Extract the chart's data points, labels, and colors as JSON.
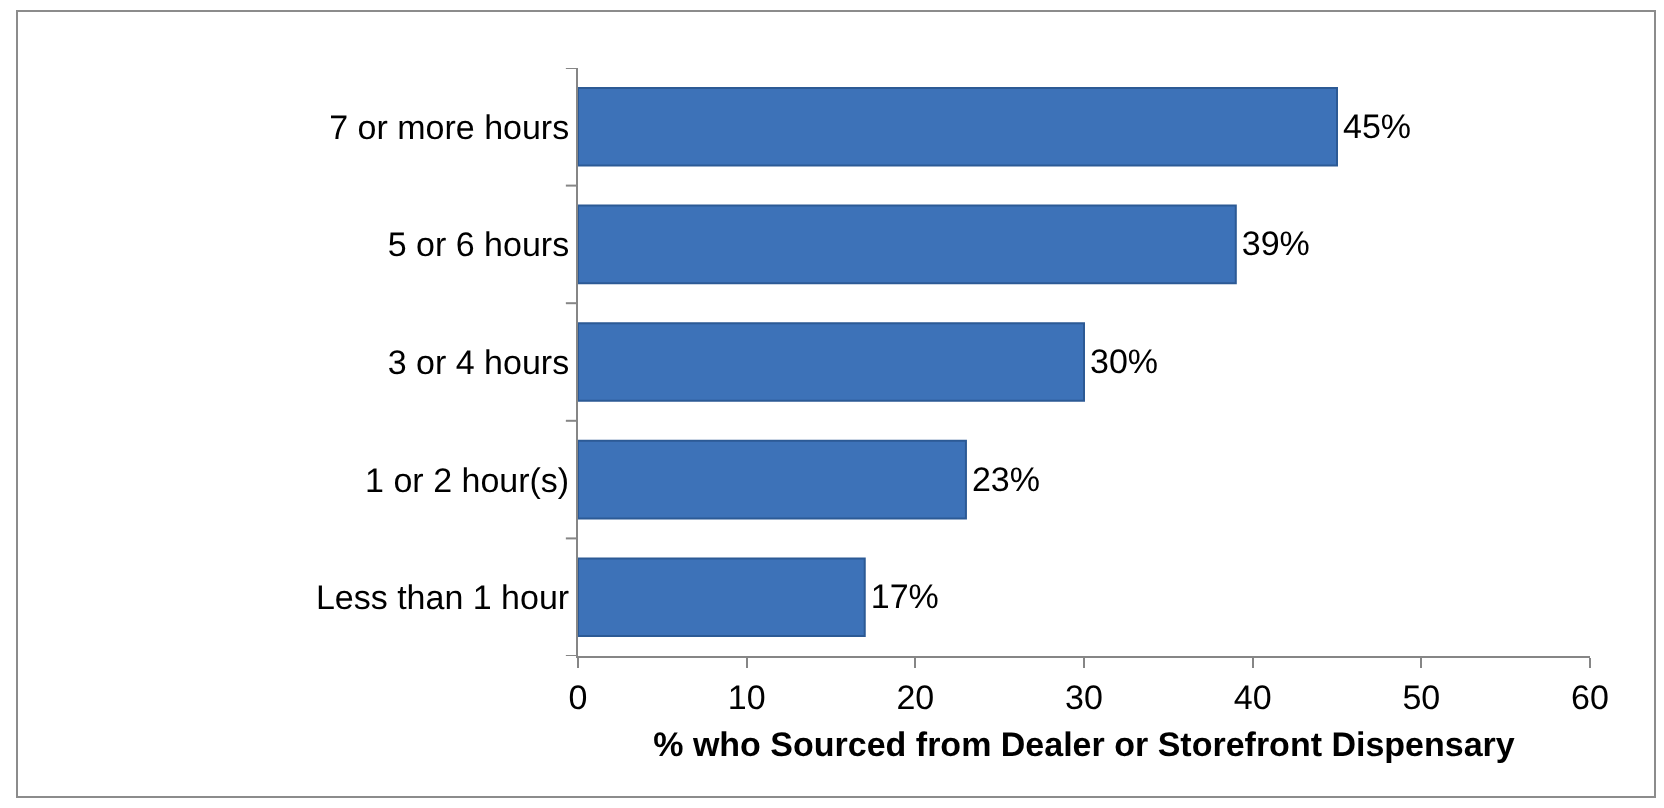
{
  "chart_data": {
    "type": "bar",
    "orientation": "horizontal",
    "categories": [
      "7 or more hours",
      "5 or 6 hours",
      "3 or 4 hours",
      "1 or 2 hour(s)",
      "Less than 1 hour"
    ],
    "values": [
      45,
      39,
      30,
      23,
      17
    ],
    "value_labels": [
      "45%",
      "39%",
      "30%",
      "23%",
      "17%"
    ],
    "color": "#3d72b8",
    "xlabel": "% who Sourced from Dealer or Storefront Dispensary",
    "xlim": [
      0,
      60
    ],
    "xticks": [
      0,
      10,
      20,
      30,
      40,
      50,
      60
    ]
  }
}
